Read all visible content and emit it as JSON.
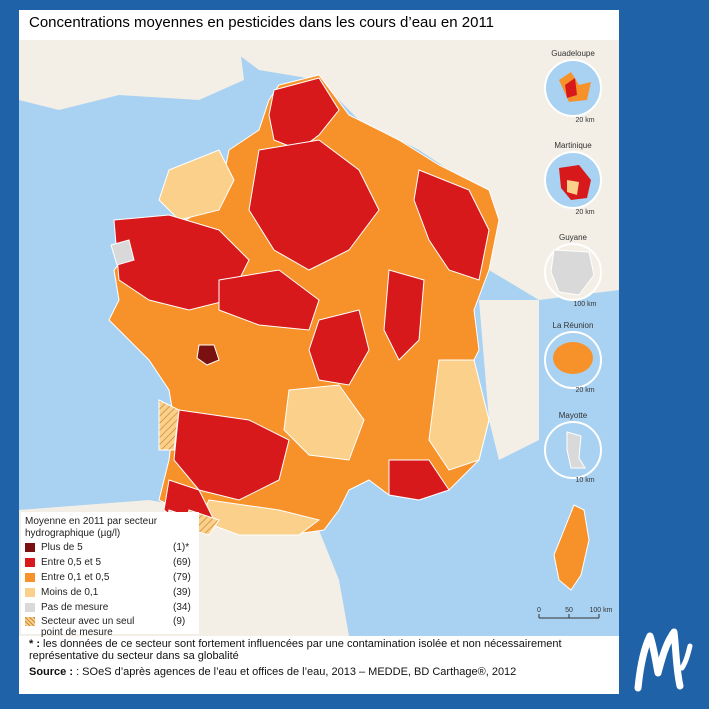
{
  "title": "Concentrations moyennes en pesticides dans les cours d’eau en 2011",
  "colors": {
    "sea": "#a9d2f2",
    "neighbor_land": "#f3efe6",
    "plus_5": "#7a1010",
    "entre_05_5": "#d7191c",
    "entre_01_05": "#f7922a",
    "moins_01": "#fbd08a",
    "pas_mesure": "#d9d9d9",
    "background": "#1f62a8"
  },
  "legend": {
    "title_line1": "Moyenne en 2011 par secteur",
    "title_line2": "hydrographique (µg/l)",
    "items": [
      {
        "label": "Plus de 5",
        "count": "(1)*"
      },
      {
        "label": "Entre 0,5 et 5",
        "count": "(69)"
      },
      {
        "label": "Entre 0,1 et 0,5",
        "count": "(79)"
      },
      {
        "label": "Moins de 0,1",
        "count": "(39)"
      },
      {
        "label": "Pas de mesure",
        "count": "(34)"
      },
      {
        "label": "Secteur avec un seul",
        "label2": "point de mesure",
        "count": "(9)"
      }
    ]
  },
  "insets": [
    {
      "name": "Guadeloupe",
      "scale": "20 km"
    },
    {
      "name": "Martinique",
      "scale": "20 km"
    },
    {
      "name": "Guyane",
      "scale": "100 km"
    },
    {
      "name": "La Réunion",
      "scale": "20 km"
    },
    {
      "name": "Mayotte",
      "scale": "10 km"
    }
  ],
  "scale_bar": {
    "ticks": [
      "0",
      "50",
      "100 km"
    ]
  },
  "footnote": {
    "marker": " * :",
    "text": " les données de ce secteur sont fortement influencées par une contamination isolée et non nécessairement représentative du secteur dans sa globalité"
  },
  "source": {
    "label": "Source :",
    "text": " : SOeS d’après agences de l’eau et offices de l’eau, 2013 – MEDDE, BD Carthage®, 2012"
  },
  "logo": {
    "letter": "M"
  }
}
